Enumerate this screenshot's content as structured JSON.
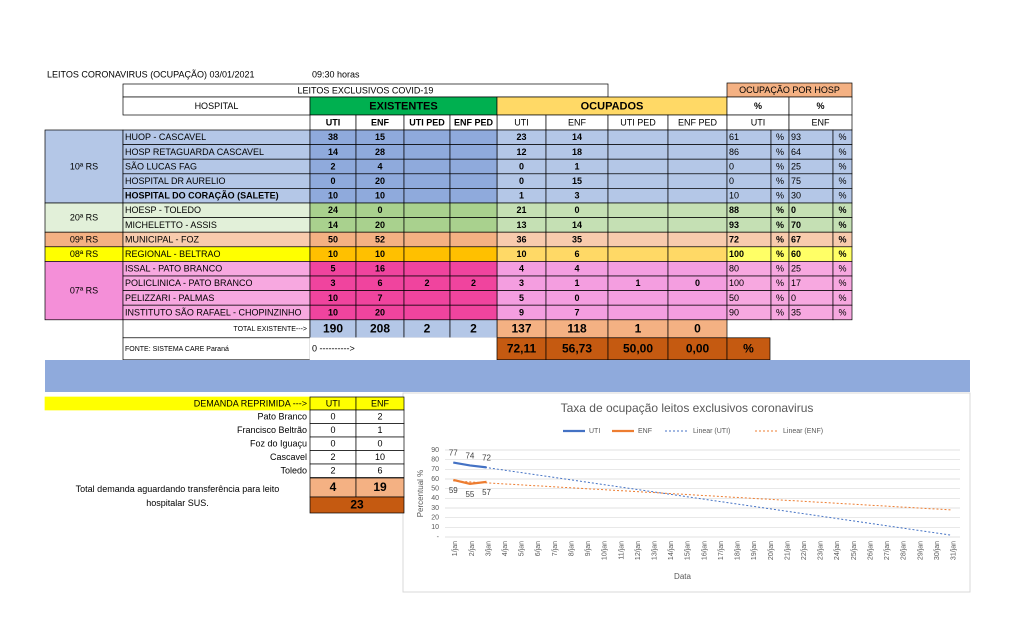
{
  "header": {
    "title": "LEITOS CORONAVIRUS (OCUPAÇÃO) 03/01/2021",
    "time": "09:30 horas",
    "subtitle": "LEITOS EXCLUSIVOS COVID-19",
    "ocupacao_title": "OCUPAÇÃO POR HOSP"
  },
  "table": {
    "columns": {
      "hospital": "HOSPITAL",
      "existentes": "EXISTENTES",
      "ocupados": "OCUPADOS",
      "pct_uti": "%",
      "pct_enf": "%"
    },
    "subcolumns": [
      "UTI",
      "ENF",
      "UTI PED",
      "ENF PED"
    ],
    "pct_subcolumns": [
      "UTI",
      "ENF"
    ],
    "pct_sign": "%",
    "regions": [
      {
        "name": "10ª RS",
        "rows": [
          {
            "hospital": "HUOP - CASCAVEL",
            "existentes": [
              38,
              15,
              null,
              null
            ],
            "ocupados": [
              23,
              14,
              null,
              null
            ],
            "pct": [
              61,
              93
            ]
          },
          {
            "hospital": "HOSP RETAGUARDA CASCAVEL",
            "existentes": [
              14,
              28,
              null,
              null
            ],
            "ocupados": [
              12,
              18,
              null,
              null
            ],
            "pct": [
              86,
              64
            ]
          },
          {
            "hospital": "SÃO LUCAS FAG",
            "existentes": [
              2,
              4,
              null,
              null
            ],
            "ocupados": [
              0,
              1,
              null,
              null
            ],
            "pct": [
              0,
              25
            ]
          },
          {
            "hospital": "HOSPITAL DR AURELIO",
            "existentes": [
              0,
              20,
              null,
              null
            ],
            "ocupados": [
              0,
              15,
              null,
              null
            ],
            "pct": [
              0,
              75
            ]
          },
          {
            "hospital": "HOSPITAL DO CORAÇÃO (SALETE)",
            "existentes": [
              10,
              10,
              null,
              null
            ],
            "ocupados": [
              1,
              3,
              null,
              null
            ],
            "pct": [
              10,
              30
            ]
          }
        ]
      },
      {
        "name": "20ª RS",
        "rows": [
          {
            "hospital": "HOESP - TOLEDO",
            "existentes": [
              24,
              0,
              null,
              null
            ],
            "ocupados": [
              21,
              0,
              null,
              null
            ],
            "pct": [
              88,
              0
            ]
          },
          {
            "hospital": "MICHELETTO - ASSIS",
            "existentes": [
              14,
              20,
              null,
              null
            ],
            "ocupados": [
              13,
              14,
              null,
              null
            ],
            "pct": [
              93,
              70
            ]
          }
        ]
      },
      {
        "name": "09ª RS",
        "rows": [
          {
            "hospital": "MUNICIPAL - FOZ",
            "existentes": [
              50,
              52,
              null,
              null
            ],
            "ocupados": [
              36,
              35,
              null,
              null
            ],
            "pct": [
              72,
              67
            ]
          }
        ]
      },
      {
        "name": "08ª RS",
        "rows": [
          {
            "hospital": "REGIONAL - BELTRAO",
            "existentes": [
              10,
              10,
              null,
              null
            ],
            "ocupados": [
              10,
              6,
              null,
              null
            ],
            "pct": [
              100,
              60
            ]
          }
        ]
      },
      {
        "name": "07ª RS",
        "rows": [
          {
            "hospital": "ISSAL - PATO BRANCO",
            "existentes": [
              5,
              16,
              null,
              null
            ],
            "ocupados": [
              4,
              4,
              null,
              null
            ],
            "pct": [
              80,
              25
            ]
          },
          {
            "hospital": "POLICLINICA - PATO BRANCO",
            "existentes": [
              3,
              6,
              2,
              2
            ],
            "ocupados": [
              3,
              1,
              1,
              0
            ],
            "pct": [
              100,
              17
            ]
          },
          {
            "hospital": "PELIZZARI - PALMAS",
            "existentes": [
              10,
              7,
              null,
              null
            ],
            "ocupados": [
              5,
              0,
              null,
              null
            ],
            "pct": [
              50,
              0
            ]
          },
          {
            "hospital": "INSTITUTO SÃO RAFAEL - CHOPINZINHO",
            "existentes": [
              10,
              20,
              null,
              null
            ],
            "ocupados": [
              9,
              7,
              null,
              null
            ],
            "pct": [
              90,
              35
            ]
          }
        ]
      }
    ],
    "total": {
      "label": "TOTAL EXISTENTE--->",
      "existentes": [
        190,
        208,
        2,
        2
      ],
      "ocupados": [
        137,
        118,
        1,
        0
      ]
    },
    "footer": {
      "source": "FONTE: SISTEMA CARE Paraná",
      "arrow": "0 ---------->",
      "rates": [
        "72,11",
        "56,73",
        "50,00",
        "0,00"
      ],
      "rate_unit": "%"
    }
  },
  "demand": {
    "title": "DEMANDA REPRIMIDA --->",
    "columns": [
      "UTI",
      "ENF"
    ],
    "rows": [
      {
        "city": "Pato Branco",
        "values": [
          0,
          2
        ]
      },
      {
        "city": "Francisco Beltrão",
        "values": [
          0,
          1
        ]
      },
      {
        "city": "Foz do Iguaçu",
        "values": [
          0,
          0
        ]
      },
      {
        "city": "Cascavel",
        "values": [
          2,
          10
        ]
      },
      {
        "city": "Toledo",
        "values": [
          2,
          6
        ]
      }
    ],
    "totals": [
      4,
      19
    ],
    "grand_total": 23,
    "note": "Total demanda aguardando transferência para leito hospitalar SUS."
  },
  "chart_data": {
    "type": "line",
    "title": "Taxa de ocupação leitos exclusivos coronavirus",
    "x_label": "Data",
    "y_label": "Percentual %",
    "categories": [
      "1/jan",
      "2/jan",
      "3/jan",
      "4/jan",
      "5/jan",
      "6/jan",
      "7/jan",
      "8/jan",
      "9/jan",
      "10/jan",
      "11/jan",
      "12/jan",
      "13/jan",
      "14/jan",
      "15/jan",
      "16/jan",
      "17/jan",
      "18/jan",
      "19/jan",
      "20/jan",
      "21/jan",
      "22/jan",
      "23/jan",
      "24/jan",
      "25/jan",
      "26/jan",
      "27/jan",
      "28/jan",
      "29/jan",
      "30/jan",
      "31/jan"
    ],
    "series": [
      {
        "name": "UTI",
        "color": "#4472c4",
        "trendline": "Linear (UTI)",
        "values": [
          77,
          74,
          72,
          null,
          null,
          null,
          null,
          null,
          null,
          null,
          null,
          null,
          null,
          null,
          null,
          null,
          null,
          null,
          null,
          null,
          null,
          null,
          null,
          null,
          null,
          null,
          null,
          null,
          null,
          null,
          null
        ]
      },
      {
        "name": "ENF",
        "color": "#ed7d31",
        "trendline": "Linear (ENF)",
        "values": [
          59,
          55,
          57,
          null,
          null,
          null,
          null,
          null,
          null,
          null,
          null,
          null,
          null,
          null,
          null,
          null,
          null,
          null,
          null,
          null,
          null,
          null,
          null,
          null,
          null,
          null,
          null,
          null,
          null,
          null,
          null
        ]
      }
    ],
    "ylim": [
      0,
      90
    ],
    "yticks": [
      {
        "value": 0,
        "label": "-"
      },
      10,
      20,
      30,
      40,
      50,
      60,
      70,
      80,
      90
    ],
    "grid": true,
    "legend": "top"
  }
}
